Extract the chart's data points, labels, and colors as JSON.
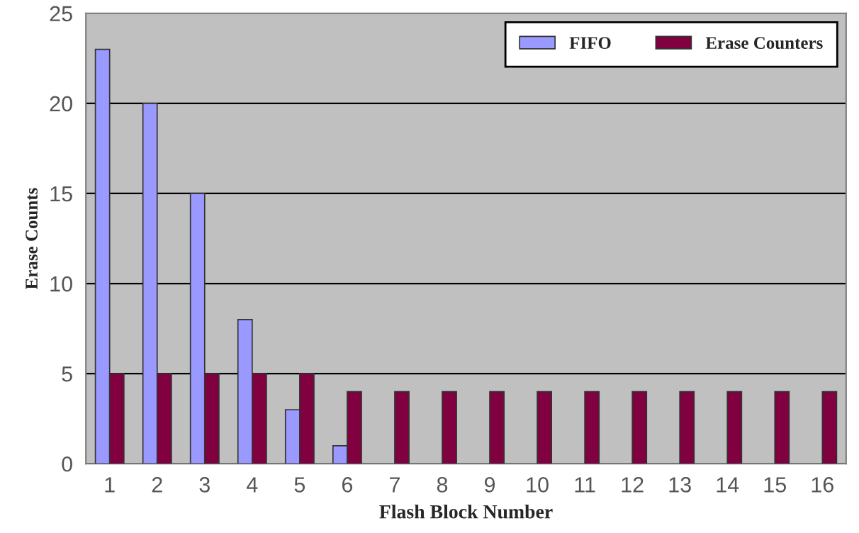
{
  "chart_data": {
    "type": "bar",
    "xlabel": "Flash Block Number",
    "ylabel": "Erase Counts",
    "categories": [
      "1",
      "2",
      "3",
      "4",
      "5",
      "6",
      "7",
      "8",
      "9",
      "10",
      "11",
      "12",
      "13",
      "14",
      "15",
      "16"
    ],
    "series": [
      {
        "name": "FIFO",
        "color": "#9999ff",
        "values": [
          23,
          20,
          15,
          8,
          3,
          1,
          null,
          null,
          null,
          null,
          null,
          null,
          null,
          null,
          null,
          null
        ]
      },
      {
        "name": "Erase Counters",
        "color": "#800040",
        "values": [
          5,
          5,
          5,
          5,
          5,
          4,
          4,
          4,
          4,
          4,
          4,
          4,
          4,
          4,
          4,
          4
        ]
      }
    ],
    "ylim": [
      0,
      25
    ],
    "yticks": [
      0,
      5,
      10,
      15,
      20,
      25
    ],
    "grid": "y",
    "legend": "top right"
  }
}
